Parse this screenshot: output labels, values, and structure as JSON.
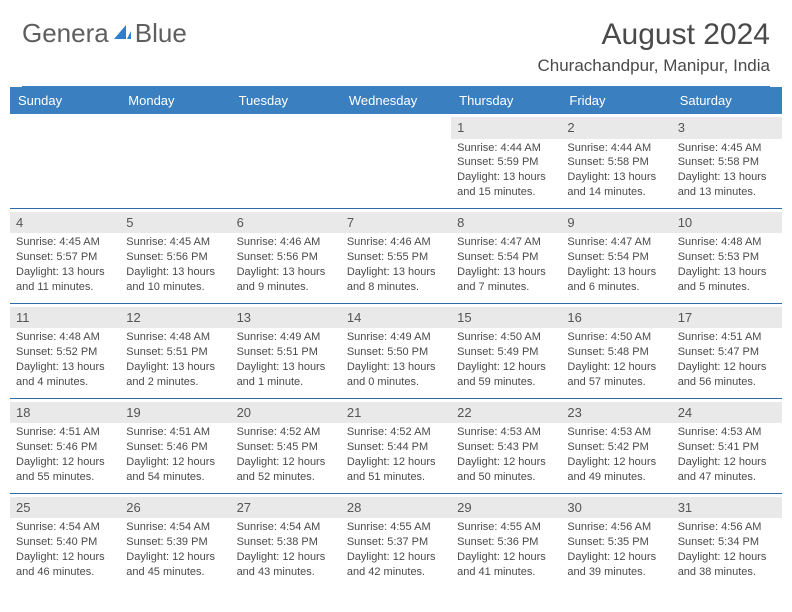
{
  "brand": {
    "part1": "Genera",
    "part2": "Blue"
  },
  "title": "August 2024",
  "location": "Churachandpur, Manipur, India",
  "colors": {
    "header_bg": "#3a80c1",
    "header_text": "#ffffff",
    "rule": "#2f6aa8",
    "daynum_bg": "#e9e9e9",
    "body_text": "#4a4a4a",
    "logo_text": "#5f5f5f",
    "logo_blue": "#2f7fd1"
  },
  "weekdays": [
    "Sunday",
    "Monday",
    "Tuesday",
    "Wednesday",
    "Thursday",
    "Friday",
    "Saturday"
  ],
  "weeks": [
    [
      null,
      null,
      null,
      null,
      {
        "d": "1",
        "sr": "Sunrise: 4:44 AM",
        "ss": "Sunset: 5:59 PM",
        "dl": "Daylight: 13 hours and 15 minutes."
      },
      {
        "d": "2",
        "sr": "Sunrise: 4:44 AM",
        "ss": "Sunset: 5:58 PM",
        "dl": "Daylight: 13 hours and 14 minutes."
      },
      {
        "d": "3",
        "sr": "Sunrise: 4:45 AM",
        "ss": "Sunset: 5:58 PM",
        "dl": "Daylight: 13 hours and 13 minutes."
      }
    ],
    [
      {
        "d": "4",
        "sr": "Sunrise: 4:45 AM",
        "ss": "Sunset: 5:57 PM",
        "dl": "Daylight: 13 hours and 11 minutes."
      },
      {
        "d": "5",
        "sr": "Sunrise: 4:45 AM",
        "ss": "Sunset: 5:56 PM",
        "dl": "Daylight: 13 hours and 10 minutes."
      },
      {
        "d": "6",
        "sr": "Sunrise: 4:46 AM",
        "ss": "Sunset: 5:56 PM",
        "dl": "Daylight: 13 hours and 9 minutes."
      },
      {
        "d": "7",
        "sr": "Sunrise: 4:46 AM",
        "ss": "Sunset: 5:55 PM",
        "dl": "Daylight: 13 hours and 8 minutes."
      },
      {
        "d": "8",
        "sr": "Sunrise: 4:47 AM",
        "ss": "Sunset: 5:54 PM",
        "dl": "Daylight: 13 hours and 7 minutes."
      },
      {
        "d": "9",
        "sr": "Sunrise: 4:47 AM",
        "ss": "Sunset: 5:54 PM",
        "dl": "Daylight: 13 hours and 6 minutes."
      },
      {
        "d": "10",
        "sr": "Sunrise: 4:48 AM",
        "ss": "Sunset: 5:53 PM",
        "dl": "Daylight: 13 hours and 5 minutes."
      }
    ],
    [
      {
        "d": "11",
        "sr": "Sunrise: 4:48 AM",
        "ss": "Sunset: 5:52 PM",
        "dl": "Daylight: 13 hours and 4 minutes."
      },
      {
        "d": "12",
        "sr": "Sunrise: 4:48 AM",
        "ss": "Sunset: 5:51 PM",
        "dl": "Daylight: 13 hours and 2 minutes."
      },
      {
        "d": "13",
        "sr": "Sunrise: 4:49 AM",
        "ss": "Sunset: 5:51 PM",
        "dl": "Daylight: 13 hours and 1 minute."
      },
      {
        "d": "14",
        "sr": "Sunrise: 4:49 AM",
        "ss": "Sunset: 5:50 PM",
        "dl": "Daylight: 13 hours and 0 minutes."
      },
      {
        "d": "15",
        "sr": "Sunrise: 4:50 AM",
        "ss": "Sunset: 5:49 PM",
        "dl": "Daylight: 12 hours and 59 minutes."
      },
      {
        "d": "16",
        "sr": "Sunrise: 4:50 AM",
        "ss": "Sunset: 5:48 PM",
        "dl": "Daylight: 12 hours and 57 minutes."
      },
      {
        "d": "17",
        "sr": "Sunrise: 4:51 AM",
        "ss": "Sunset: 5:47 PM",
        "dl": "Daylight: 12 hours and 56 minutes."
      }
    ],
    [
      {
        "d": "18",
        "sr": "Sunrise: 4:51 AM",
        "ss": "Sunset: 5:46 PM",
        "dl": "Daylight: 12 hours and 55 minutes."
      },
      {
        "d": "19",
        "sr": "Sunrise: 4:51 AM",
        "ss": "Sunset: 5:46 PM",
        "dl": "Daylight: 12 hours and 54 minutes."
      },
      {
        "d": "20",
        "sr": "Sunrise: 4:52 AM",
        "ss": "Sunset: 5:45 PM",
        "dl": "Daylight: 12 hours and 52 minutes."
      },
      {
        "d": "21",
        "sr": "Sunrise: 4:52 AM",
        "ss": "Sunset: 5:44 PM",
        "dl": "Daylight: 12 hours and 51 minutes."
      },
      {
        "d": "22",
        "sr": "Sunrise: 4:53 AM",
        "ss": "Sunset: 5:43 PM",
        "dl": "Daylight: 12 hours and 50 minutes."
      },
      {
        "d": "23",
        "sr": "Sunrise: 4:53 AM",
        "ss": "Sunset: 5:42 PM",
        "dl": "Daylight: 12 hours and 49 minutes."
      },
      {
        "d": "24",
        "sr": "Sunrise: 4:53 AM",
        "ss": "Sunset: 5:41 PM",
        "dl": "Daylight: 12 hours and 47 minutes."
      }
    ],
    [
      {
        "d": "25",
        "sr": "Sunrise: 4:54 AM",
        "ss": "Sunset: 5:40 PM",
        "dl": "Daylight: 12 hours and 46 minutes."
      },
      {
        "d": "26",
        "sr": "Sunrise: 4:54 AM",
        "ss": "Sunset: 5:39 PM",
        "dl": "Daylight: 12 hours and 45 minutes."
      },
      {
        "d": "27",
        "sr": "Sunrise: 4:54 AM",
        "ss": "Sunset: 5:38 PM",
        "dl": "Daylight: 12 hours and 43 minutes."
      },
      {
        "d": "28",
        "sr": "Sunrise: 4:55 AM",
        "ss": "Sunset: 5:37 PM",
        "dl": "Daylight: 12 hours and 42 minutes."
      },
      {
        "d": "29",
        "sr": "Sunrise: 4:55 AM",
        "ss": "Sunset: 5:36 PM",
        "dl": "Daylight: 12 hours and 41 minutes."
      },
      {
        "d": "30",
        "sr": "Sunrise: 4:56 AM",
        "ss": "Sunset: 5:35 PM",
        "dl": "Daylight: 12 hours and 39 minutes."
      },
      {
        "d": "31",
        "sr": "Sunrise: 4:56 AM",
        "ss": "Sunset: 5:34 PM",
        "dl": "Daylight: 12 hours and 38 minutes."
      }
    ]
  ]
}
